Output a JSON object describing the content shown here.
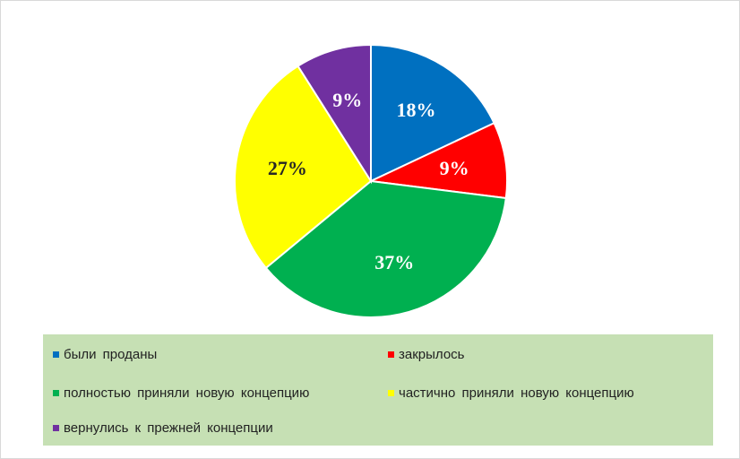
{
  "chart_data": {
    "type": "pie",
    "title": "",
    "labels": [
      "были проданы",
      "закрылось",
      "полностью приняли новую концепцию",
      "частично приняли новую концепцию",
      "вернулись к прежней концепции"
    ],
    "values": [
      18,
      9,
      37,
      27,
      9
    ],
    "value_labels": [
      "18%",
      "9%",
      "37%",
      "27%",
      "9%"
    ],
    "colors": [
      "#0070c0",
      "#ff0000",
      "#00b050",
      "#ffff00",
      "#7030a0"
    ],
    "label_colors": [
      "#ffffff",
      "#ffffff",
      "#ffffff",
      "#262626",
      "#ffffff"
    ],
    "start": "12 o'clock",
    "direction": "clockwise",
    "legend": {
      "position": "bottom",
      "background": "#c6e0b4"
    }
  }
}
